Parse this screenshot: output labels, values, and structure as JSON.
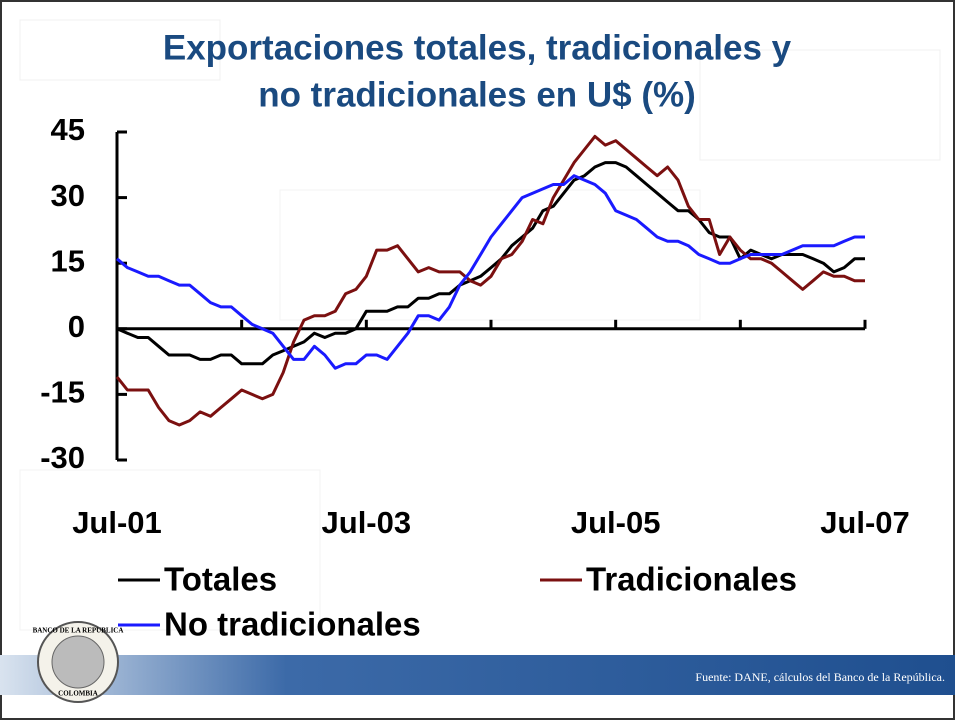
{
  "chart_data": {
    "type": "line",
    "title": [
      "Exportaciones totales, tradicionales y",
      "no tradicionales en U$ (%)"
    ],
    "categories": [
      "Jul-01",
      null,
      null,
      null,
      null,
      null,
      null,
      null,
      null,
      null,
      null,
      null,
      null,
      null,
      null,
      null,
      null,
      null,
      null,
      null,
      null,
      null,
      null,
      null,
      "Jul-03",
      null,
      null,
      null,
      null,
      null,
      null,
      null,
      null,
      null,
      null,
      null,
      null,
      null,
      null,
      null,
      null,
      null,
      null,
      null,
      null,
      null,
      null,
      null,
      "Jul-05",
      null,
      null,
      null,
      null,
      null,
      null,
      null,
      null,
      null,
      null,
      null,
      null,
      null,
      null,
      null,
      null,
      null,
      null,
      null,
      null,
      null,
      null,
      null,
      "Jul-07"
    ],
    "series": [
      {
        "name": "Totales",
        "color": "#000000",
        "values": [
          0,
          -1,
          -2,
          -2,
          -4,
          -6,
          -6,
          -6,
          -7,
          -7,
          -6,
          -6,
          -8,
          -8,
          -8,
          -6,
          -5,
          -4,
          -3,
          -1,
          -2,
          -1,
          -1,
          0,
          4,
          4,
          4,
          5,
          5,
          7,
          7,
          8,
          8,
          10,
          11,
          12,
          14,
          16,
          19,
          21,
          23,
          27,
          28,
          31,
          34,
          35,
          37,
          38,
          38,
          37,
          35,
          33,
          31,
          29,
          27,
          27,
          25,
          22,
          21,
          21,
          16,
          18,
          17,
          16,
          17,
          17,
          17,
          16,
          15,
          13,
          14,
          16,
          16
        ]
      },
      {
        "name": "Tradicionales",
        "color": "#7b1010",
        "values": [
          -11,
          -14,
          -14,
          -14,
          -18,
          -21,
          -22,
          -21,
          -19,
          -20,
          -18,
          -16,
          -14,
          -15,
          -16,
          -15,
          -10,
          -3,
          2,
          3,
          3,
          4,
          8,
          9,
          12,
          18,
          18,
          19,
          16,
          13,
          14,
          13,
          13,
          13,
          11,
          10,
          12,
          16,
          17,
          20,
          25,
          24,
          30,
          34,
          38,
          41,
          44,
          42,
          43,
          41,
          39,
          37,
          35,
          37,
          34,
          28,
          25,
          25,
          17,
          21,
          18,
          16,
          16,
          15,
          13,
          11,
          9,
          11,
          13,
          12,
          12,
          11,
          11
        ]
      },
      {
        "name": "No tradicionales",
        "color": "#1a1aff",
        "values": [
          16,
          14,
          13,
          12,
          12,
          11,
          10,
          10,
          8,
          6,
          5,
          5,
          3,
          1,
          0,
          -1,
          -4,
          -7,
          -7,
          -4,
          -6,
          -9,
          -8,
          -8,
          -6,
          -6,
          -7,
          -4,
          -1,
          3,
          3,
          2,
          5,
          10,
          13,
          17,
          21,
          24,
          27,
          30,
          31,
          32,
          33,
          33,
          35,
          34,
          33,
          31,
          27,
          26,
          25,
          23,
          21,
          20,
          20,
          19,
          17,
          16,
          15,
          15,
          16,
          17,
          17,
          17,
          17,
          18,
          19,
          19,
          19,
          19,
          20,
          21,
          21
        ]
      }
    ],
    "ylim": [
      -30,
      45
    ],
    "yticks": [
      -30,
      -15,
      0,
      15,
      30,
      45
    ]
  },
  "footer": {
    "source": "Fuente: DANE, cálculos del Banco de la República.",
    "logo_top": "BANCO DE LA REPUBLICA",
    "logo_bottom": "COLOMBIA"
  }
}
